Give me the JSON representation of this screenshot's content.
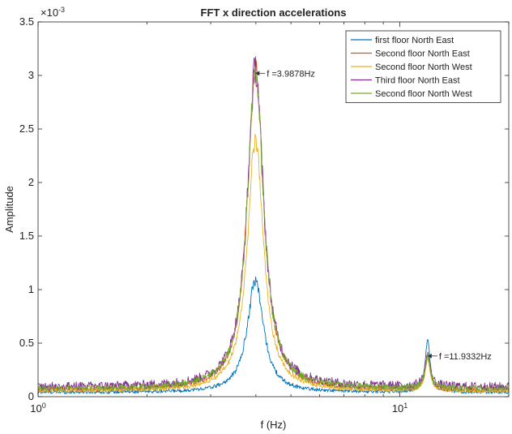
{
  "chart_data": {
    "type": "line",
    "title": "FFT x direction accelerations",
    "xlabel": "f (Hz)",
    "ylabel": "Amplitude",
    "xscale": "log",
    "xlim": [
      1,
      20
    ],
    "ylim": [
      0,
      0.0035
    ],
    "y_exponent_label": "×10",
    "y_exponent_power": "-3",
    "y_ticks": [
      0,
      0.5,
      1,
      1.5,
      2,
      2.5,
      3,
      3.5
    ],
    "x_tick_labels": [
      {
        "base": "10",
        "power": "0",
        "value": 1
      },
      {
        "base": "10",
        "power": "1",
        "value": 10
      }
    ],
    "grid": false,
    "legend_position": "top-right",
    "series": [
      {
        "name": "first floor North East",
        "color": "#0072bd",
        "peak1": 0.00105,
        "peak2": 0.00048,
        "floor": 4e-05,
        "noise": 1.5e-05
      },
      {
        "name": "Second floor North East",
        "color": "#d95319",
        "peak1": 0.00302,
        "peak2": 0.0003,
        "floor": 6e-05,
        "noise": 2.5e-05
      },
      {
        "name": "Second floor North West",
        "color": "#edb120",
        "peak1": 0.00235,
        "peak2": 0.00028,
        "floor": 5e-05,
        "noise": 2e-05
      },
      {
        "name": "Third floor North East",
        "color": "#7e2f8e",
        "peak1": 0.00298,
        "peak2": 0.0003,
        "floor": 9e-05,
        "noise": 4e-05
      },
      {
        "name": "Second floor North West",
        "color": "#77ac30",
        "peak1": 0.003,
        "peak2": 0.00032,
        "floor": 7e-05,
        "noise": 3e-05
      }
    ],
    "annotations": [
      {
        "text": "f =3.9878Hz",
        "x": 3.9878,
        "y": 0.00302
      },
      {
        "text": "f =11.9332Hz",
        "x": 11.9332,
        "y": 0.00038
      }
    ]
  }
}
